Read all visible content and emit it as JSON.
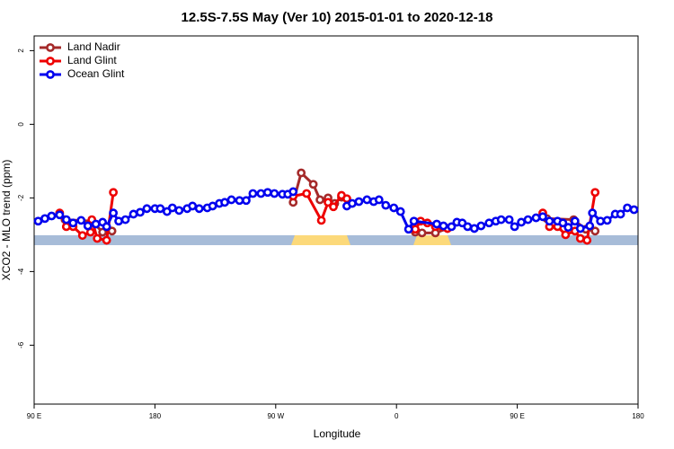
{
  "chart_data": {
    "type": "line",
    "title": "12.5S-7.5S May (Ver 10)   2015-01-01 to 2020-12-18",
    "x_label": "Longitude",
    "y_label": "XCO2 - MLO trend (ppm)",
    "xlim": [
      90,
      540
    ],
    "ylim": [
      -7.6,
      2.4
    ],
    "xticks": [
      {
        "value": 90,
        "label": "90 E"
      },
      180,
      {
        "value": 270,
        "label": "90 W"
      },
      {
        "value": 360,
        "label": "0"
      },
      {
        "value": 450,
        "label": "90 E"
      },
      {
        "value": 540,
        "label": "180"
      }
    ],
    "yticks": [
      2,
      0,
      -2,
      -4,
      -6
    ],
    "legend": "top-left",
    "series": [
      {
        "name": "Land Nadir",
        "color": "#a52a2a",
        "x": [
          113,
          133,
          141,
          148,
          null,
          283,
          289,
          298,
          303,
          309,
          314,
          319,
          null,
          374,
          379,
          389,
          398,
          null,
          472,
          492,
          501,
          508
        ],
        "values": [
          -2.59,
          -2.63,
          -2.93,
          -2.9,
          null,
          -2.12,
          -1.32,
          -1.63,
          -2.05,
          -2.0,
          -2.15,
          -1.98,
          null,
          -2.93,
          -2.95,
          -2.95,
          -2.83,
          null,
          -2.56,
          -2.59,
          -2.85,
          -2.9
        ]
      },
      {
        "name": "Land Glint",
        "color": "#ee0000",
        "x": [
          109,
          114,
          119,
          126,
          132,
          133,
          137,
          144,
          149,
          null,
          283,
          293,
          304,
          309,
          313,
          319,
          323,
          null,
          374,
          378,
          383,
          389,
          394,
          398,
          null,
          469,
          474,
          480,
          486,
          493,
          497,
          502,
          508
        ],
        "values": [
          -2.41,
          -2.78,
          -2.78,
          -3.02,
          -2.93,
          -2.59,
          -3.1,
          -3.15,
          -1.85,
          null,
          -1.95,
          -1.88,
          -2.61,
          -2.12,
          -2.24,
          -1.93,
          -2.02,
          null,
          -2.85,
          -2.63,
          -2.68,
          -2.78,
          -2.78,
          -2.83,
          null,
          -2.41,
          -2.78,
          -2.78,
          -3.0,
          -2.9,
          -3.1,
          -3.15,
          -1.85
        ]
      },
      {
        "name": "Ocean Glint",
        "color": "#0000ee",
        "x": [
          93,
          98,
          103,
          109,
          114,
          119,
          125,
          130,
          136,
          141,
          144,
          149,
          153,
          158,
          164,
          169,
          174,
          180,
          184,
          189,
          193,
          198,
          204,
          208,
          213,
          219,
          223,
          228,
          232,
          237,
          243,
          248,
          253,
          259,
          264,
          269,
          275,
          279,
          283,
          null,
          323,
          327,
          332,
          338,
          343,
          347,
          352,
          358,
          363,
          369,
          373,
          390,
          395,
          401,
          405,
          409,
          413,
          418,
          423,
          429,
          434,
          438,
          444,
          448,
          453,
          458,
          464,
          469,
          474,
          480,
          484,
          488,
          493,
          497,
          504,
          506,
          512,
          517,
          523,
          527,
          532,
          537
        ],
        "values": [
          -2.63,
          -2.56,
          -2.49,
          -2.46,
          -2.59,
          -2.68,
          -2.61,
          -2.76,
          -2.71,
          -2.66,
          -2.78,
          -2.41,
          -2.63,
          -2.59,
          -2.44,
          -2.39,
          -2.29,
          -2.29,
          -2.29,
          -2.37,
          -2.27,
          -2.34,
          -2.29,
          -2.22,
          -2.29,
          -2.27,
          -2.22,
          -2.15,
          -2.12,
          -2.05,
          -2.07,
          -2.07,
          -1.88,
          -1.88,
          -1.85,
          -1.88,
          -1.9,
          -1.9,
          -1.83,
          null,
          -2.22,
          -2.15,
          -2.1,
          -2.05,
          -2.1,
          -2.05,
          -2.2,
          -2.27,
          -2.37,
          -2.85,
          -2.63,
          -2.71,
          -2.76,
          -2.78,
          -2.66,
          -2.68,
          -2.78,
          -2.83,
          -2.76,
          -2.68,
          -2.63,
          -2.59,
          -2.59,
          -2.78,
          -2.66,
          -2.59,
          -2.54,
          -2.51,
          -2.63,
          -2.63,
          -2.68,
          -2.8,
          -2.63,
          -2.83,
          -2.76,
          -2.41,
          -2.63,
          -2.61,
          -2.44,
          -2.44,
          -2.27,
          -2.32
        ]
      }
    ]
  }
}
